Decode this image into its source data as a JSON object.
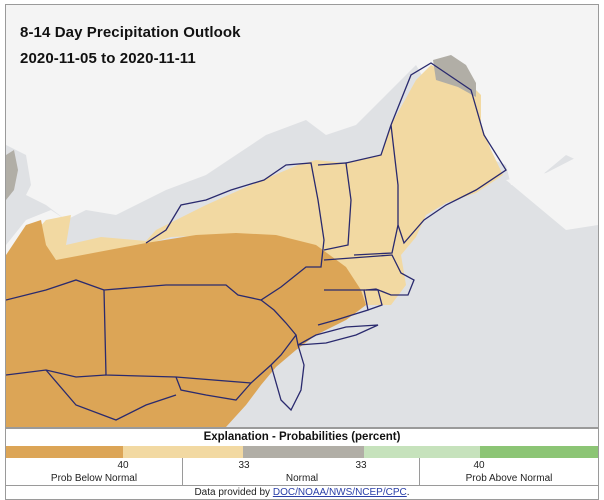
{
  "map": {
    "title": "8-14 Day Precipitation Outlook",
    "date_range": "2020-11-05 to 2020-11-11",
    "colors": {
      "water": "#dfe1e4",
      "land": "#f7f7f7",
      "below_40": "#dca556",
      "below_33": "#f2d9a2",
      "normal": "#b1aea6",
      "border": "#2a2a6e"
    }
  },
  "legend": {
    "title": "Explanation - Probabilities (percent)",
    "segments": [
      {
        "color": "#dca556",
        "weight": 117
      },
      {
        "color": "#f2d9a2",
        "weight": 120
      },
      {
        "color": "#b1aea6",
        "weight": 121
      },
      {
        "color": "#c6e2bc",
        "weight": 116
      },
      {
        "color": "#8cc575",
        "weight": 118
      }
    ],
    "ticks": [
      "40",
      "33",
      "33",
      "40"
    ],
    "categories": [
      "Prob Below Normal",
      "Normal",
      "Prob Above Normal"
    ],
    "credit_prefix": "Data provided by ",
    "credit_link": "DOC/NOAA/NWS/NCEP/CPC",
    "credit_suffix": "."
  }
}
